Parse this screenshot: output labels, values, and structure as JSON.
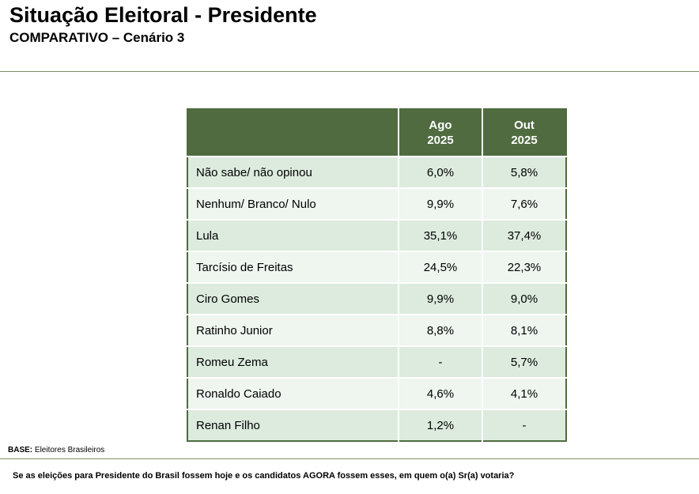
{
  "header": {
    "title": "Situação Eleitoral - Presidente",
    "subtitle": "COMPARATIVO – Cenário 3"
  },
  "table": {
    "columns": [
      {
        "month": "Ago",
        "year": "2025"
      },
      {
        "month": "Out",
        "year": "2025"
      }
    ],
    "rows": [
      [
        "Não sabe/ não opinou",
        "6,0%",
        "5,8%"
      ],
      [
        "Nenhum/ Branco/ Nulo",
        "9,9%",
        "7,6%"
      ],
      [
        "Lula",
        "35,1%",
        "37,4%"
      ],
      [
        "Tarcísio de Freitas",
        "24,5%",
        "22,3%"
      ],
      [
        "Ciro Gomes",
        "9,9%",
        "9,0%"
      ],
      [
        "Ratinho Junior",
        "8,8%",
        "8,1%"
      ],
      [
        "Romeu Zema",
        "-",
        "5,7%"
      ],
      [
        "Ronaldo Caiado",
        "4,6%",
        "4,1%"
      ],
      [
        "Renan Filho",
        "1,2%",
        "-"
      ]
    ]
  },
  "footer": {
    "base_label": "BASE:",
    "base_text": "Eleitores Brasileiros",
    "question": "Se as eleições para Presidente do Brasil fossem hoje e os candidatos AGORA fossem esses, em quem o(a) Sr(a) votaria?"
  }
}
